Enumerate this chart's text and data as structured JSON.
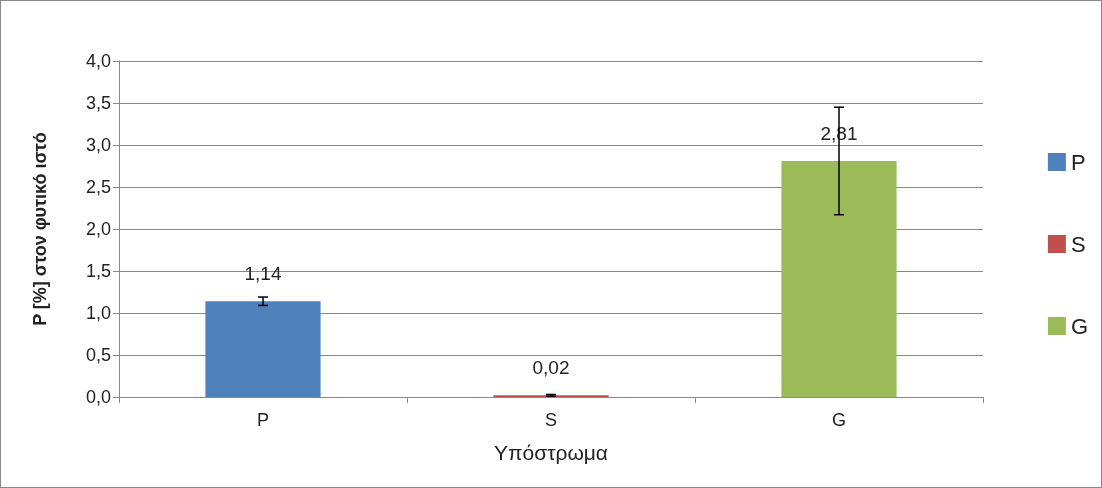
{
  "chart_data": {
    "type": "bar",
    "xlabel": "Υπόστρωμα",
    "ylabel": "P [%] στον φυτικό ιστό",
    "categories": [
      "P",
      "S",
      "G"
    ],
    "series": [
      {
        "name": "P",
        "color": "#4f81bd",
        "values": [
          1.14,
          null,
          null
        ],
        "errors": [
          0.05,
          null,
          null
        ],
        "value_labels": [
          "1,14",
          null,
          null
        ]
      },
      {
        "name": "S",
        "color": "#c0504d",
        "values": [
          null,
          0.02,
          null
        ],
        "errors": [
          null,
          0.01,
          null
        ],
        "value_labels": [
          null,
          "0,02",
          null
        ]
      },
      {
        "name": "G",
        "color": "#9bbb59",
        "values": [
          null,
          null,
          2.81
        ],
        "errors": [
          null,
          null,
          0.64
        ],
        "value_labels": [
          null,
          null,
          "2,81"
        ]
      }
    ],
    "ylim": [
      0,
      4
    ],
    "yticks": [
      {
        "value": 0,
        "label": "0,0"
      },
      {
        "value": 0.5,
        "label": "0,5"
      },
      {
        "value": 1,
        "label": "1,0"
      },
      {
        "value": 1.5,
        "label": "1,5"
      },
      {
        "value": 2,
        "label": "2,0"
      },
      {
        "value": 2.5,
        "label": "2,5"
      },
      {
        "value": 3,
        "label": "3,0"
      },
      {
        "value": 3.5,
        "label": "3,5"
      },
      {
        "value": 4,
        "label": "4,0"
      }
    ],
    "grid": "y",
    "legend": "right"
  }
}
